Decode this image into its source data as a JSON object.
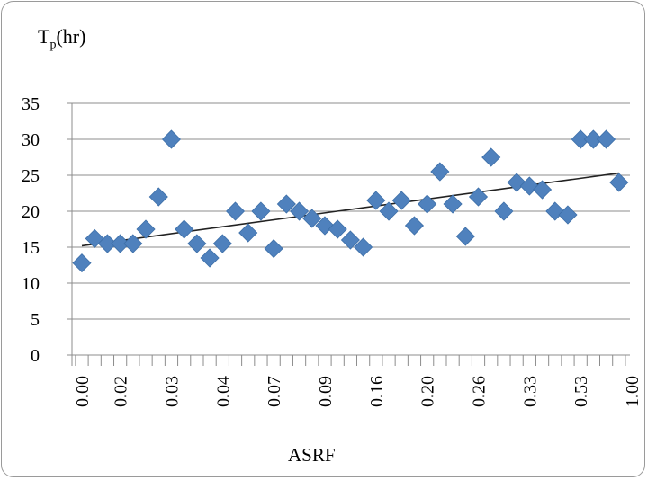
{
  "chart_data": {
    "type": "scatter",
    "ylabel_main": "T",
    "ylabel_sub": "p",
    "ylabel_unit": "(hr)",
    "xlabel": "ASRF",
    "ylim": [
      0,
      35
    ],
    "y_ticks": [
      0,
      5,
      10,
      15,
      20,
      25,
      30,
      35
    ],
    "x_tick_labels": [
      "0.00",
      "0.02",
      "0.03",
      "0.04",
      "0.07",
      "0.09",
      "0.16",
      "0.20",
      "0.26",
      "0.33",
      "0.53",
      "1.00"
    ],
    "x_tick_label_index": [
      0,
      3,
      7,
      11,
      15,
      19,
      23,
      27,
      31,
      35,
      39,
      43
    ],
    "grid": "horizontal",
    "marker_color": "#4f81bd",
    "trend_color": "#222222",
    "values": [
      12.8,
      16.2,
      15.5,
      15.5,
      15.5,
      17.5,
      22,
      30,
      17.5,
      15.5,
      13.5,
      15.5,
      20,
      17,
      20,
      14.8,
      21,
      20,
      19,
      18,
      17.5,
      16,
      15,
      21.5,
      20,
      21.5,
      18,
      21,
      25.5,
      21,
      16.5,
      22,
      27.5,
      20,
      24,
      23.5,
      23,
      20,
      19.5,
      30,
      30,
      30,
      24
    ],
    "trendline": {
      "start": 15.2,
      "end": 25.3
    }
  }
}
